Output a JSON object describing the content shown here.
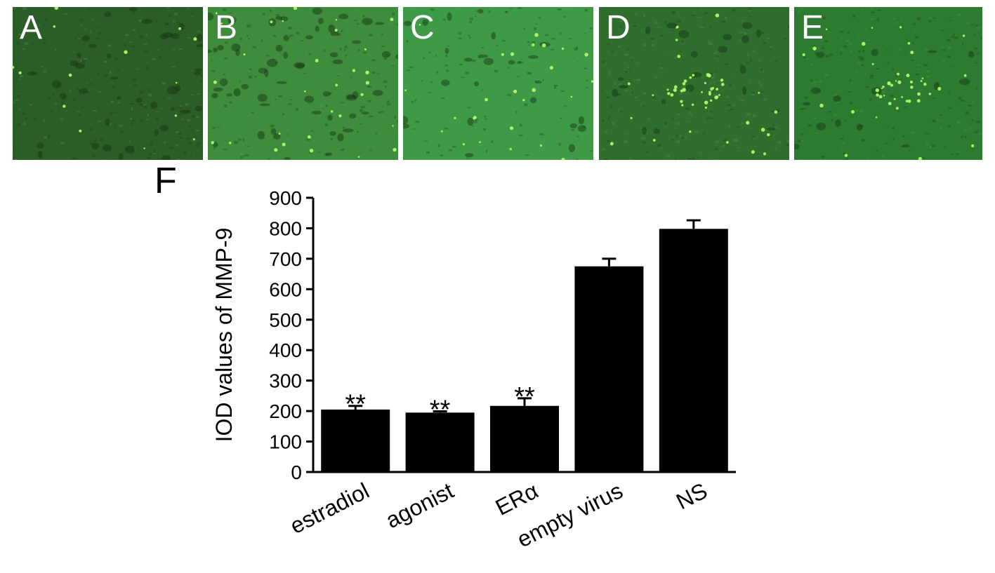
{
  "panels": [
    {
      "label": "A",
      "tone": "#2b5d26",
      "cells": 14,
      "dark": 40
    },
    {
      "label": "B",
      "tone": "#3e8c3c",
      "cells": 30,
      "dark": 60
    },
    {
      "label": "C",
      "tone": "#3f9a47",
      "cells": 26,
      "dark": 25
    },
    {
      "label": "D",
      "tone": "#2f6e2d",
      "cells": 50,
      "dark": 20
    },
    {
      "label": "E",
      "tone": "#2d7a31",
      "cells": 45,
      "dark": 15
    }
  ],
  "figure_label": "F",
  "colors": {
    "bar": "#000000",
    "cell_bright": "#b6ff6a"
  },
  "chart_data": {
    "type": "bar",
    "title": "",
    "xlabel": "",
    "ylabel": "IOD values of MMP-9",
    "ylim": [
      0,
      900
    ],
    "yticks": [
      0,
      100,
      200,
      300,
      400,
      500,
      600,
      700,
      800,
      900
    ],
    "categories": [
      "estradiol",
      "agonist",
      "ERα",
      "empty virus",
      "NS"
    ],
    "values": [
      205,
      195,
      217,
      675,
      798
    ],
    "errors": [
      12,
      4,
      25,
      25,
      28
    ],
    "annotations": [
      "**",
      "**",
      "**",
      "",
      ""
    ],
    "grid": false
  }
}
